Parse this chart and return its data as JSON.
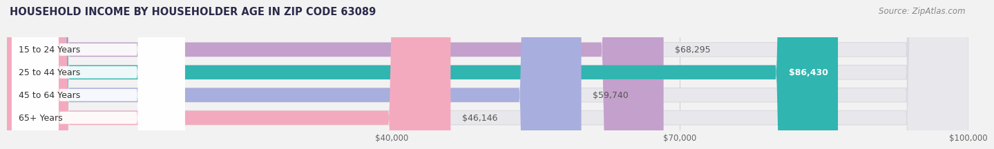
{
  "title": "HOUSEHOLD INCOME BY HOUSEHOLDER AGE IN ZIP CODE 63089",
  "source": "Source: ZipAtlas.com",
  "categories": [
    "15 to 24 Years",
    "25 to 44 Years",
    "45 to 64 Years",
    "65+ Years"
  ],
  "values": [
    68295,
    86430,
    59740,
    46146
  ],
  "bar_colors": [
    "#c4a0cc",
    "#30b5b0",
    "#a8aedd",
    "#f4aabe"
  ],
  "value_labels": [
    "$68,295",
    "$86,430",
    "$59,740",
    "$46,146"
  ],
  "label_white": [
    false,
    true,
    false,
    false
  ],
  "background_color": "#f2f2f2",
  "bar_track_color": "#e8e8ec",
  "bar_track_border": "#d8d8e0",
  "white_pill_color": "#ffffff",
  "xlim": [
    0,
    100000
  ],
  "xticks": [
    40000,
    70000,
    100000
  ],
  "xtick_labels": [
    "$40,000",
    "$70,000",
    "$100,000"
  ],
  "title_fontsize": 10.5,
  "source_fontsize": 8.5,
  "label_fontsize": 9,
  "cat_fontsize": 9,
  "tick_fontsize": 8.5
}
